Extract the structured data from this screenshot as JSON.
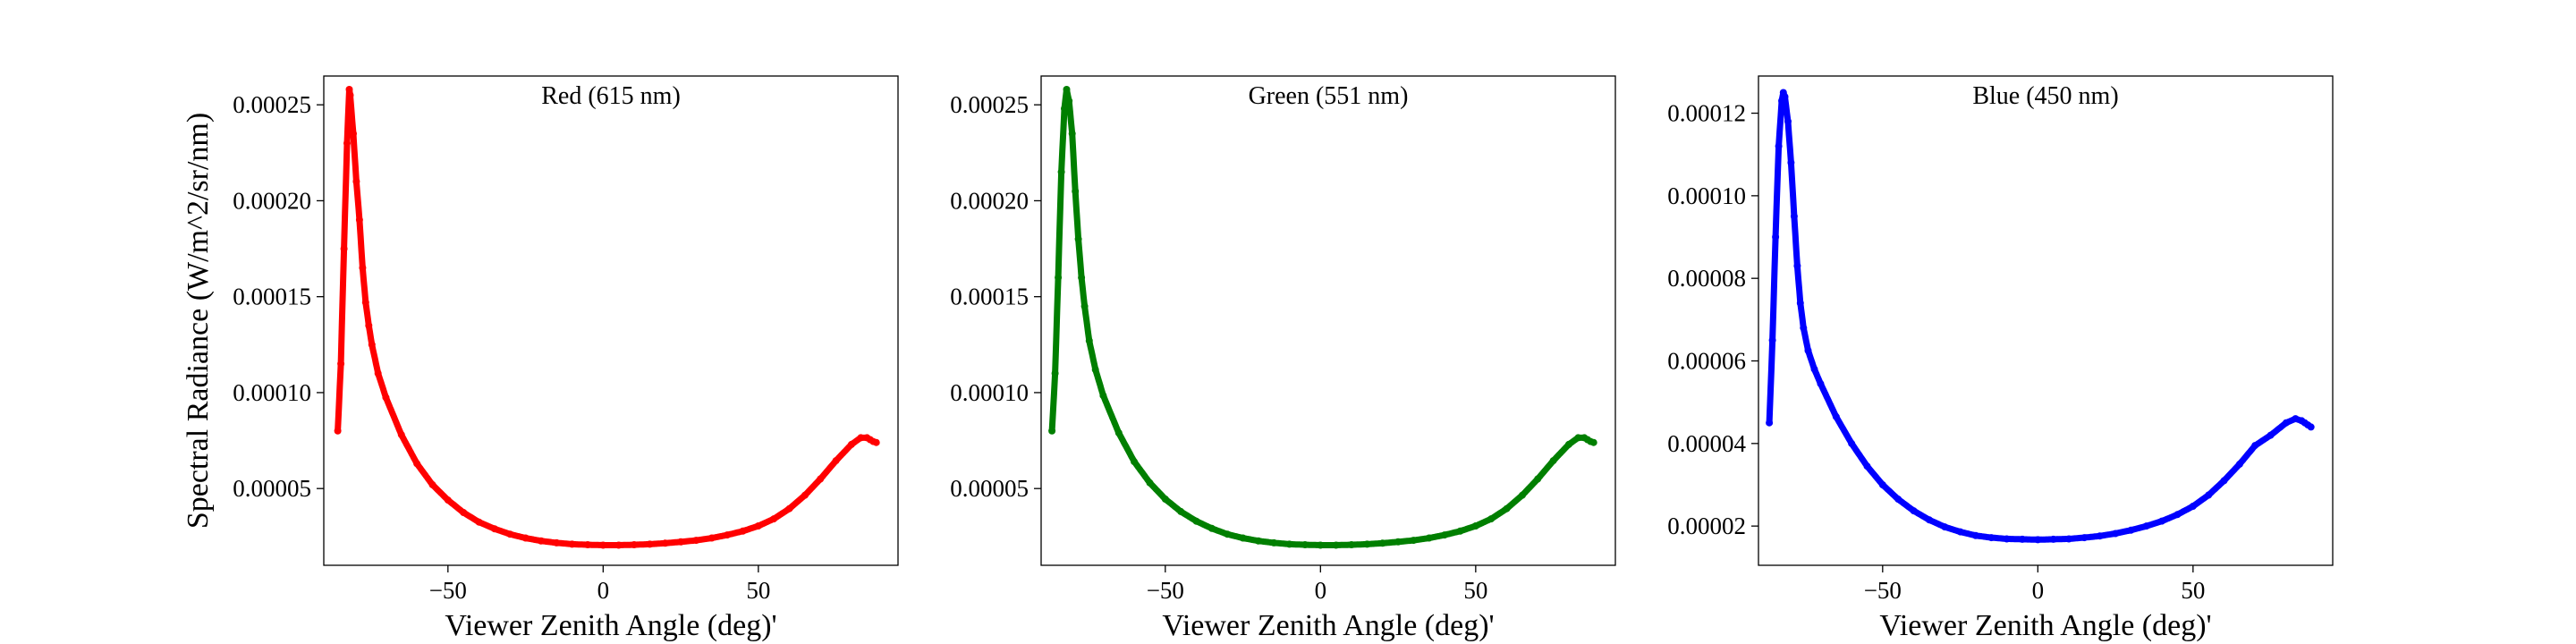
{
  "chart_data": [
    {
      "type": "scatter",
      "title": "Red (615 nm)",
      "xlabel": "Viewer Zenith Angle (deg)'",
      "ylabel": "Spectral Radiance (W/m^2/sr/nm)",
      "color": "#ff0000",
      "xlim": [
        -90,
        95
      ],
      "ylim": [
        1e-05,
        0.000265
      ],
      "xticks": [
        -50,
        0,
        50
      ],
      "xtick_labels": [
        "−50",
        "0",
        "50"
      ],
      "yticks": [
        5e-05,
        0.0001,
        0.00015,
        0.0002,
        0.00025
      ],
      "ytick_labels": [
        "0.00005",
        "0.00010",
        "0.00015",
        "0.00020",
        "0.00025"
      ],
      "grid": false,
      "x": [
        -85.5,
        -84.5,
        -83.5,
        -82.5,
        -81.8,
        -81.5,
        -80.5,
        -79.5,
        -78.5,
        -77.5,
        -76.5,
        -75.5,
        -74.5,
        -72.5,
        -70,
        -65,
        -60,
        -55,
        -50,
        -45,
        -40,
        -35,
        -30,
        -25,
        -20,
        -15,
        -10,
        -5,
        0,
        5,
        10,
        15,
        20,
        25,
        30,
        35,
        40,
        45,
        50,
        55,
        60,
        65,
        70,
        75,
        80,
        83,
        85,
        86,
        87,
        88
      ],
      "y": [
        8e-05,
        0.000115,
        0.000175,
        0.00023,
        0.000258,
        0.000255,
        0.000235,
        0.00021,
        0.00019,
        0.000165,
        0.000147,
        0.000135,
        0.000125,
        0.00011,
        9.75e-05,
        7.8e-05,
        6.3e-05,
        5.2e-05,
        4.4e-05,
        3.75e-05,
        3.25e-05,
        2.9e-05,
        2.62e-05,
        2.42e-05,
        2.27e-05,
        2.17e-05,
        2.1e-05,
        2.07e-05,
        2.05e-05,
        2.05e-05,
        2.07e-05,
        2.1e-05,
        2.15e-05,
        2.22e-05,
        2.3e-05,
        2.42e-05,
        2.58e-05,
        2.78e-05,
        3.05e-05,
        3.42e-05,
        3.95e-05,
        4.65e-05,
        5.5e-05,
        6.45e-05,
        7.3e-05,
        7.65e-05,
        7.65e-05,
        7.55e-05,
        7.45e-05,
        7.4e-05
      ]
    },
    {
      "type": "scatter",
      "title": "Green (551 nm)",
      "xlabel": "Viewer Zenith Angle (deg)'",
      "ylabel": "",
      "color": "#007f00",
      "xlim": [
        -90,
        95
      ],
      "ylim": [
        1e-05,
        0.000265
      ],
      "xticks": [
        -50,
        0,
        50
      ],
      "xtick_labels": [
        "−50",
        "0",
        "50"
      ],
      "yticks": [
        5e-05,
        0.0001,
        0.00015,
        0.0002,
        0.00025
      ],
      "ytick_labels": [
        "0.00005",
        "0.00010",
        "0.00015",
        "0.00020",
        "0.00025"
      ],
      "grid": false,
      "x": [
        -86.5,
        -85.5,
        -84.5,
        -83.5,
        -82.5,
        -81.8,
        -81,
        -80,
        -79,
        -78,
        -77,
        -76,
        -74.5,
        -72.5,
        -70,
        -65,
        -60,
        -55,
        -50,
        -45,
        -40,
        -35,
        -30,
        -25,
        -20,
        -15,
        -10,
        -5,
        0,
        5,
        10,
        15,
        20,
        25,
        30,
        35,
        40,
        45,
        50,
        55,
        60,
        65,
        70,
        75,
        80,
        83,
        85,
        86,
        87,
        88
      ],
      "y": [
        8e-05,
        0.00011,
        0.00016,
        0.000215,
        0.000248,
        0.000258,
        0.000252,
        0.000235,
        0.000205,
        0.00018,
        0.00016,
        0.000145,
        0.000127,
        0.000112,
        9.85e-05,
        7.9e-05,
        6.4e-05,
        5.3e-05,
        4.45e-05,
        3.8e-05,
        3.3e-05,
        2.92e-05,
        2.62e-05,
        2.42e-05,
        2.27e-05,
        2.17e-05,
        2.1e-05,
        2.07e-05,
        2.05e-05,
        2.05e-05,
        2.07e-05,
        2.1e-05,
        2.15e-05,
        2.22e-05,
        2.3e-05,
        2.42e-05,
        2.58e-05,
        2.78e-05,
        3.05e-05,
        3.42e-05,
        3.95e-05,
        4.65e-05,
        5.5e-05,
        6.45e-05,
        7.3e-05,
        7.65e-05,
        7.65e-05,
        7.55e-05,
        7.45e-05,
        7.4e-05
      ]
    },
    {
      "type": "scatter",
      "title": "Blue (450 nm)",
      "xlabel": "Viewer Zenith Angle (deg)'",
      "ylabel": "",
      "color": "#0000ff",
      "xlim": [
        -90,
        95
      ],
      "ylim": [
        1.05e-05,
        0.000129
      ],
      "xticks": [
        -50,
        0,
        50
      ],
      "xtick_labels": [
        "−50",
        "0",
        "50"
      ],
      "yticks": [
        2e-05,
        4e-05,
        6e-05,
        8e-05,
        0.0001,
        0.00012
      ],
      "ytick_labels": [
        "0.00002",
        "0.00004",
        "0.00006",
        "0.00008",
        "0.00010",
        "0.00012"
      ],
      "grid": false,
      "x": [
        -86.5,
        -85.5,
        -84.5,
        -83.5,
        -82.5,
        -82,
        -81.5,
        -80.5,
        -79.5,
        -78.5,
        -77.5,
        -76.5,
        -75.5,
        -74,
        -72,
        -70,
        -65,
        -60,
        -55,
        -50,
        -45,
        -40,
        -35,
        -30,
        -25,
        -20,
        -15,
        -10,
        -5,
        0,
        5,
        10,
        15,
        20,
        25,
        30,
        35,
        40,
        45,
        50,
        55,
        60,
        65,
        70,
        75,
        80,
        83,
        85,
        86,
        87,
        88
      ],
      "y": [
        4.5e-05,
        6.5e-05,
        9e-05,
        0.000112,
        0.000123,
        0.000125,
        0.000124,
        0.000118,
        0.000108,
        9.5e-05,
        8.3e-05,
        7.4e-05,
        6.8e-05,
        6.25e-05,
        5.8e-05,
        5.45e-05,
        4.65e-05,
        4e-05,
        3.45e-05,
        3e-05,
        2.65e-05,
        2.37e-05,
        2.15e-05,
        1.98e-05,
        1.86e-05,
        1.77e-05,
        1.72e-05,
        1.69e-05,
        1.68e-05,
        1.67e-05,
        1.68e-05,
        1.69e-05,
        1.72e-05,
        1.76e-05,
        1.82e-05,
        1.9e-05,
        2e-05,
        2.12e-05,
        2.28e-05,
        2.48e-05,
        2.75e-05,
        3.1e-05,
        3.5e-05,
        3.95e-05,
        4.2e-05,
        4.5e-05,
        4.6e-05,
        4.55e-05,
        4.5e-05,
        4.45e-05,
        4.4e-05
      ]
    }
  ]
}
